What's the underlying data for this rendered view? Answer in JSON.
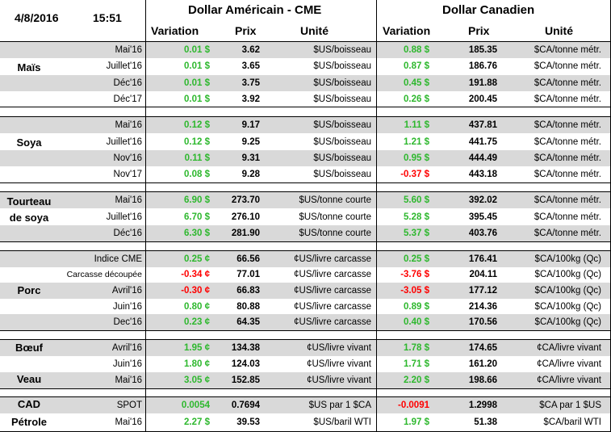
{
  "header": {
    "date": "4/8/2016",
    "time": "15:51",
    "usd_section": "Dollar Américain - CME",
    "cad_section": "Dollar Canadien",
    "col_variation": "Variation",
    "col_prix": "Prix",
    "col_unite": "Unité"
  },
  "categories": {
    "mais": "Maïs",
    "soya": "Soya",
    "tourteau_1": "Tourteau",
    "tourteau_2": "de soya",
    "porc": "Porc",
    "boeuf": "Bœuf",
    "veau": "Veau",
    "cad": "CAD",
    "petrole": "Pétrole"
  },
  "rows": [
    {
      "contract": "Mai'16",
      "usd_var": "0.01 $",
      "usd_price": "3.62",
      "usd_unit": "$US/boisseau",
      "cad_var": "0.88 $",
      "cad_price": "185.35",
      "cad_unit": "$CA/tonne métr.",
      "usd_sign": "pos",
      "cad_sign": "pos"
    },
    {
      "contract": "Juillet'16",
      "usd_var": "0.01 $",
      "usd_price": "3.65",
      "usd_unit": "$US/boisseau",
      "cad_var": "0.87 $",
      "cad_price": "186.76",
      "cad_unit": "$CA/tonne métr.",
      "usd_sign": "pos",
      "cad_sign": "pos"
    },
    {
      "contract": "Déc'16",
      "usd_var": "0.01 $",
      "usd_price": "3.75",
      "usd_unit": "$US/boisseau",
      "cad_var": "0.45 $",
      "cad_price": "191.88",
      "cad_unit": "$CA/tonne métr.",
      "usd_sign": "pos",
      "cad_sign": "pos"
    },
    {
      "contract": "Déc'17",
      "usd_var": "0.01 $",
      "usd_price": "3.92",
      "usd_unit": "$US/boisseau",
      "cad_var": "0.26 $",
      "cad_price": "200.45",
      "cad_unit": "$CA/tonne métr.",
      "usd_sign": "pos",
      "cad_sign": "pos"
    },
    {
      "contract": "Mai'16",
      "usd_var": "0.12 $",
      "usd_price": "9.17",
      "usd_unit": "$US/boisseau",
      "cad_var": "1.11 $",
      "cad_price": "437.81",
      "cad_unit": "$CA/tonne métr.",
      "usd_sign": "pos",
      "cad_sign": "pos"
    },
    {
      "contract": "Juillet'16",
      "usd_var": "0.12 $",
      "usd_price": "9.25",
      "usd_unit": "$US/boisseau",
      "cad_var": "1.21 $",
      "cad_price": "441.75",
      "cad_unit": "$CA/tonne métr.",
      "usd_sign": "pos",
      "cad_sign": "pos"
    },
    {
      "contract": "Nov'16",
      "usd_var": "0.11 $",
      "usd_price": "9.31",
      "usd_unit": "$US/boisseau",
      "cad_var": "0.95 $",
      "cad_price": "444.49",
      "cad_unit": "$CA/tonne métr.",
      "usd_sign": "pos",
      "cad_sign": "pos"
    },
    {
      "contract": "Nov'17",
      "usd_var": "0.08 $",
      "usd_price": "9.28",
      "usd_unit": "$US/boisseau",
      "cad_var": "-0.37 $",
      "cad_price": "443.18",
      "cad_unit": "$CA/tonne métr.",
      "usd_sign": "pos",
      "cad_sign": "neg"
    },
    {
      "contract": "Mai'16",
      "usd_var": "6.90 $",
      "usd_price": "273.70",
      "usd_unit": "$US/tonne courte",
      "cad_var": "5.60 $",
      "cad_price": "392.02",
      "cad_unit": "$CA/tonne métr.",
      "usd_sign": "pos",
      "cad_sign": "pos"
    },
    {
      "contract": "Juillet'16",
      "usd_var": "6.70 $",
      "usd_price": "276.10",
      "usd_unit": "$US/tonne courte",
      "cad_var": "5.28 $",
      "cad_price": "395.45",
      "cad_unit": "$CA/tonne métr.",
      "usd_sign": "pos",
      "cad_sign": "pos"
    },
    {
      "contract": "Déc'16",
      "usd_var": "6.30 $",
      "usd_price": "281.90",
      "usd_unit": "$US/tonne courte",
      "cad_var": "5.37 $",
      "cad_price": "403.76",
      "cad_unit": "$CA/tonne métr.",
      "usd_sign": "pos",
      "cad_sign": "pos"
    },
    {
      "contract": "Indice CME",
      "usd_var": "0.25 ¢",
      "usd_price": "66.56",
      "usd_unit": "¢US/livre carcasse",
      "cad_var": "0.25 $",
      "cad_price": "176.41",
      "cad_unit": "$CA/100kg (Qc)",
      "usd_sign": "pos",
      "cad_sign": "pos"
    },
    {
      "contract": "Carcasse découpée",
      "usd_var": "-0.34 ¢",
      "usd_price": "77.01",
      "usd_unit": "¢US/livre carcasse",
      "cad_var": "-3.76 $",
      "cad_price": "204.11",
      "cad_unit": "$CA/100kg (Qc)",
      "usd_sign": "neg",
      "cad_sign": "neg"
    },
    {
      "contract": "Avril'16",
      "usd_var": "-0.30 ¢",
      "usd_price": "66.83",
      "usd_unit": "¢US/livre carcasse",
      "cad_var": "-3.05 $",
      "cad_price": "177.12",
      "cad_unit": "$CA/100kg (Qc)",
      "usd_sign": "neg",
      "cad_sign": "neg"
    },
    {
      "contract": "Juin'16",
      "usd_var": "0.80 ¢",
      "usd_price": "80.88",
      "usd_unit": "¢US/livre carcasse",
      "cad_var": "0.89 $",
      "cad_price": "214.36",
      "cad_unit": "$CA/100kg (Qc)",
      "usd_sign": "pos",
      "cad_sign": "pos"
    },
    {
      "contract": "Dec'16",
      "usd_var": "0.23 ¢",
      "usd_price": "64.35",
      "usd_unit": "¢US/livre carcasse",
      "cad_var": "0.40 $",
      "cad_price": "170.56",
      "cad_unit": "$CA/100kg (Qc)",
      "usd_sign": "pos",
      "cad_sign": "pos"
    },
    {
      "contract": "Avril'16",
      "usd_var": "1.95 ¢",
      "usd_price": "134.38",
      "usd_unit": "¢US/livre vivant",
      "cad_var": "1.78 $",
      "cad_price": "174.65",
      "cad_unit": "¢CA/livre vivant",
      "usd_sign": "pos",
      "cad_sign": "pos"
    },
    {
      "contract": "Juin'16",
      "usd_var": "1.80 ¢",
      "usd_price": "124.03",
      "usd_unit": "¢US/livre vivant",
      "cad_var": "1.71 $",
      "cad_price": "161.20",
      "cad_unit": "¢CA/livre vivant",
      "usd_sign": "pos",
      "cad_sign": "pos"
    },
    {
      "contract": "Mai'16",
      "usd_var": "3.05 ¢",
      "usd_price": "152.85",
      "usd_unit": "¢US/livre vivant",
      "cad_var": "2.20 $",
      "cad_price": "198.66",
      "cad_unit": "¢CA/livre vivant",
      "usd_sign": "pos",
      "cad_sign": "pos"
    },
    {
      "contract": "SPOT",
      "usd_var": "0.0054",
      "usd_price": "0.7694",
      "usd_unit": "$US par 1 $CA",
      "cad_var": "-0.0091",
      "cad_price": "1.2998",
      "cad_unit": "$CA par 1 $US",
      "usd_sign": "pos",
      "cad_sign": "neg"
    },
    {
      "contract": "Mai'16",
      "usd_var": "2.27 $",
      "usd_price": "39.53",
      "usd_unit": "$US/baril WTI",
      "cad_var": "1.97 $",
      "cad_price": "51.38",
      "cad_unit": "$CA/baril WTI",
      "usd_sign": "pos",
      "cad_sign": "pos"
    }
  ]
}
